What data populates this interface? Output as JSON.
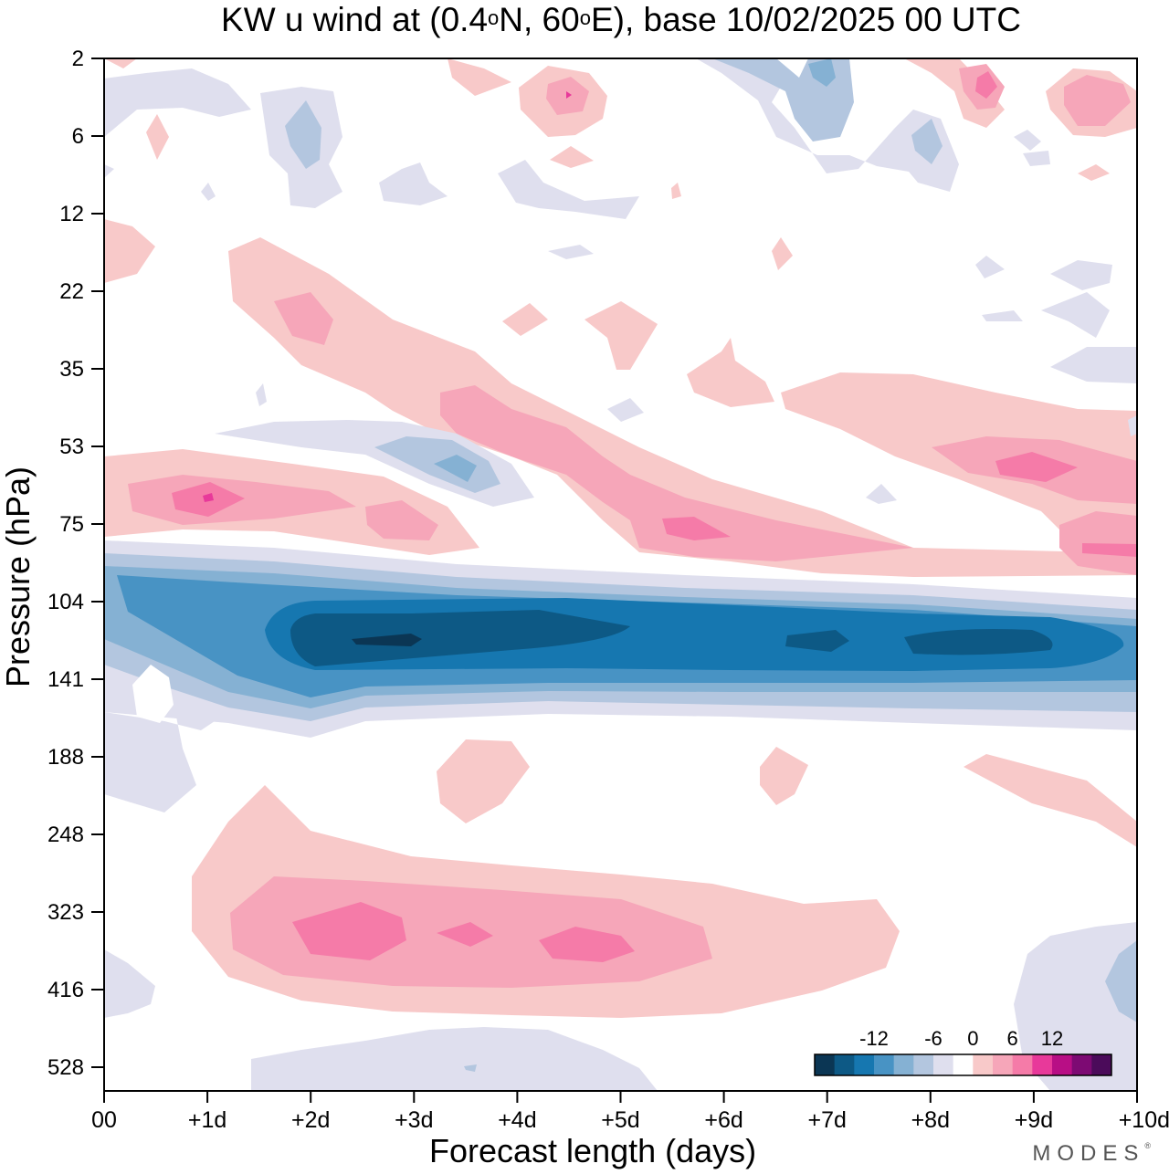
{
  "chart_data": {
    "type": "heatmap",
    "title": {
      "prefix": "KW u wind at (0.4",
      "deg1": "o",
      "mid": "N, 60",
      "deg2": "o",
      "suffix": "E),  base 10/02/2025  00 UTC"
    },
    "xlabel": "Forecast length (days)",
    "ylabel": "Pressure (hPa)",
    "x_ticks": [
      "00",
      "+1d",
      "+2d",
      "+3d",
      "+4d",
      "+5d",
      "+6d",
      "+7d",
      "+8d",
      "+9d",
      "+10d"
    ],
    "y_ticks": [
      "2",
      "6",
      "12",
      "22",
      "35",
      "53",
      "75",
      "104",
      "141",
      "188",
      "248",
      "323",
      "416",
      "528"
    ],
    "y_scale": "log-pressure",
    "xlim_days": [
      0,
      10
    ],
    "colorbar": {
      "tick_labels": [
        "-12",
        "-6",
        "0",
        "6",
        "12"
      ],
      "colors": [
        "#0b3654",
        "#0d5985",
        "#1677b0",
        "#4893c4",
        "#85b1d3",
        "#b3c6df",
        "#dfdfee",
        "#ffffff",
        "#f8c9c9",
        "#f6a6b9",
        "#f57ba8",
        "#e8399a",
        "#b80e85",
        "#7d0a73",
        "#4b0b5a"
      ],
      "placement": "bottom-right"
    },
    "features": [
      {
        "name": "westerly",
        "level": 1,
        "x": [
          1.0,
          5.0
        ],
        "pressure": [
          200,
          500
        ],
        "peak": 8
      },
      {
        "name": "easterly",
        "level": -3,
        "x": [
          0.0,
          10.0
        ],
        "pressure": [
          95,
          160
        ],
        "peak": -15
      },
      {
        "name": "westerly",
        "level": 2,
        "x": [
          0.2,
          3.5
        ],
        "pressure": [
          55,
          85
        ],
        "peak": 9
      },
      {
        "name": "westerly",
        "level": 2,
        "x": [
          5.0,
          10.0
        ],
        "pressure": [
          55,
          100
        ],
        "peak": 9
      },
      {
        "name": "easterly",
        "level": -1,
        "x": [
          0.0,
          1.6
        ],
        "pressure": [
          130,
          230
        ],
        "peak": -4
      },
      {
        "name": "easterly",
        "level": -1,
        "x": [
          8.8,
          10.0
        ],
        "pressure": [
          360,
          540
        ],
        "peak": -5
      }
    ]
  },
  "brand": {
    "name": "MODES",
    "mark": "®"
  }
}
